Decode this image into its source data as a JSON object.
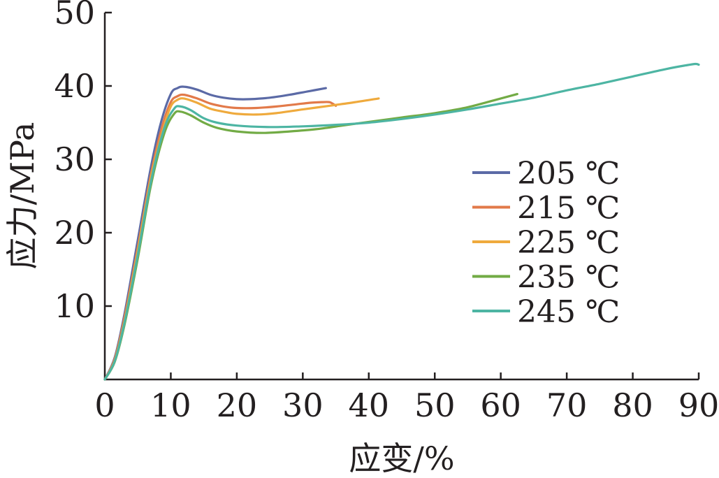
{
  "chart_data": {
    "type": "line",
    "xlabel": "应变/%",
    "ylabel": "应力/MPa",
    "xlim": [
      0,
      90
    ],
    "ylim": [
      0,
      50
    ],
    "x_ticks": [
      0,
      10,
      20,
      30,
      40,
      50,
      60,
      70,
      80,
      90
    ],
    "y_ticks": [
      10,
      20,
      30,
      40,
      50
    ],
    "grid": false,
    "legend_position": "right",
    "series": [
      {
        "name": "205 ℃",
        "color": "#5b6aa6",
        "points": [
          [
            0,
            0
          ],
          [
            1.5,
            3
          ],
          [
            3,
            9
          ],
          [
            5,
            19
          ],
          [
            7,
            29
          ],
          [
            8.5,
            35
          ],
          [
            10,
            38.9
          ],
          [
            11,
            39.7
          ],
          [
            12,
            39.9
          ],
          [
            14,
            39.5
          ],
          [
            16,
            38.8
          ],
          [
            18,
            38.4
          ],
          [
            20,
            38.2
          ],
          [
            22,
            38.2
          ],
          [
            25,
            38.4
          ],
          [
            28,
            38.8
          ],
          [
            31,
            39.3
          ],
          [
            33.5,
            39.7
          ]
        ]
      },
      {
        "name": "215 ℃",
        "color": "#e27a4a",
        "points": [
          [
            0,
            0
          ],
          [
            1.5,
            2.8
          ],
          [
            3,
            8.5
          ],
          [
            5,
            18
          ],
          [
            7,
            28
          ],
          [
            8.7,
            34.5
          ],
          [
            10,
            37.8
          ],
          [
            11,
            38.6
          ],
          [
            12,
            38.8
          ],
          [
            14,
            38.3
          ],
          [
            16,
            37.6
          ],
          [
            18,
            37.2
          ],
          [
            20,
            37.0
          ],
          [
            23,
            37.0
          ],
          [
            26,
            37.2
          ],
          [
            29,
            37.5
          ],
          [
            31,
            37.7
          ],
          [
            33,
            37.8
          ],
          [
            34,
            37.8
          ],
          [
            34.5,
            37.6
          ],
          [
            35,
            37.3
          ]
        ]
      },
      {
        "name": "225 ℃",
        "color": "#efaa3d",
        "points": [
          [
            0,
            0
          ],
          [
            1.5,
            2.6
          ],
          [
            3,
            8
          ],
          [
            5,
            17.5
          ],
          [
            7,
            27.5
          ],
          [
            8.8,
            34
          ],
          [
            10,
            37.2
          ],
          [
            11,
            38.1
          ],
          [
            12,
            38.3
          ],
          [
            14,
            37.7
          ],
          [
            16,
            36.9
          ],
          [
            18,
            36.5
          ],
          [
            20,
            36.2
          ],
          [
            23,
            36.1
          ],
          [
            26,
            36.3
          ],
          [
            30,
            36.8
          ],
          [
            34,
            37.3
          ],
          [
            38,
            37.8
          ],
          [
            41.5,
            38.3
          ]
        ]
      },
      {
        "name": "235 ℃",
        "color": "#72ab45",
        "points": [
          [
            0,
            0
          ],
          [
            1.5,
            2.4
          ],
          [
            3,
            7.5
          ],
          [
            5,
            16.5
          ],
          [
            7,
            26.5
          ],
          [
            9,
            33.5
          ],
          [
            10.5,
            36.2
          ],
          [
            11.5,
            36.5
          ],
          [
            13,
            36.0
          ],
          [
            15,
            35.0
          ],
          [
            17,
            34.3
          ],
          [
            20,
            33.8
          ],
          [
            24,
            33.6
          ],
          [
            28,
            33.8
          ],
          [
            32,
            34.1
          ],
          [
            36,
            34.6
          ],
          [
            40,
            35.1
          ],
          [
            45,
            35.7
          ],
          [
            50,
            36.3
          ],
          [
            55,
            37.1
          ],
          [
            60,
            38.3
          ],
          [
            62.5,
            38.9
          ]
        ]
      },
      {
        "name": "245 ℃",
        "color": "#4db5a3",
        "points": [
          [
            0,
            0
          ],
          [
            1.5,
            2.5
          ],
          [
            3,
            7.8
          ],
          [
            5,
            17
          ],
          [
            7,
            27
          ],
          [
            9,
            34.2
          ],
          [
            10.5,
            36.9
          ],
          [
            11.5,
            37.2
          ],
          [
            13,
            36.7
          ],
          [
            15,
            35.6
          ],
          [
            17,
            35.0
          ],
          [
            20,
            34.6
          ],
          [
            25,
            34.4
          ],
          [
            30,
            34.5
          ],
          [
            35,
            34.7
          ],
          [
            40,
            35.0
          ],
          [
            45,
            35.5
          ],
          [
            50,
            36.1
          ],
          [
            55,
            36.8
          ],
          [
            60,
            37.6
          ],
          [
            65,
            38.4
          ],
          [
            70,
            39.4
          ],
          [
            75,
            40.3
          ],
          [
            80,
            41.3
          ],
          [
            85,
            42.3
          ],
          [
            88,
            42.8
          ],
          [
            89.5,
            43.0
          ],
          [
            90,
            42.9
          ]
        ]
      }
    ]
  }
}
